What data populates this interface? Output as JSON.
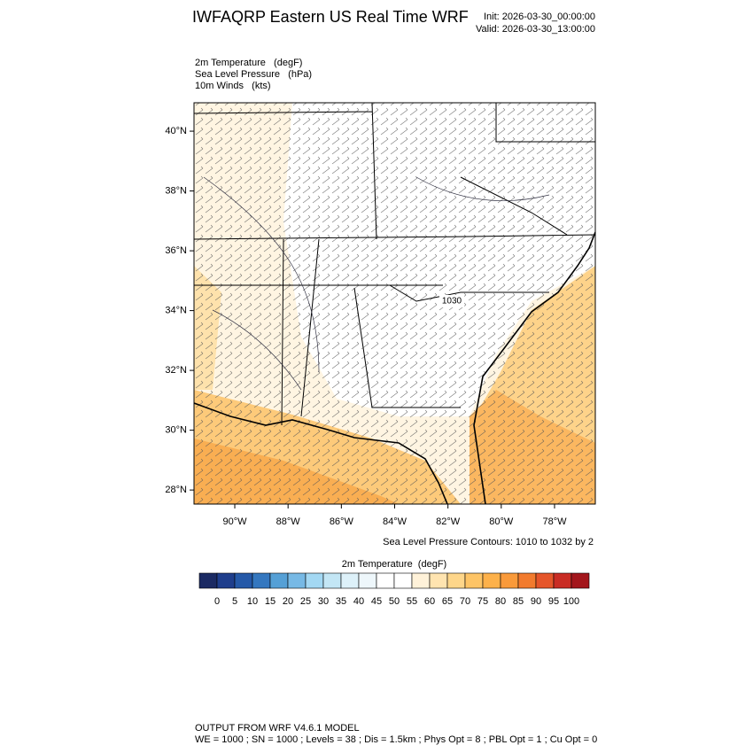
{
  "header": {
    "title": "IWFAQRP Eastern US Real Time WRF",
    "init": "Init: 2026-03-30_00:00:00",
    "valid": "Valid: 2026-03-30_13:00:00"
  },
  "fields": [
    "2m Temperature   (degF)",
    "Sea Level Pressure   (hPa)",
    "10m Winds   (kts)"
  ],
  "map": {
    "lonlim": [
      -91.53,
      -76.47
    ],
    "latlim": [
      27.53,
      40.95
    ],
    "lonticks": [
      {
        "value": -90,
        "label": "90°W"
      },
      {
        "value": -88,
        "label": "88°W"
      },
      {
        "value": -86,
        "label": "86°W"
      },
      {
        "value": -84,
        "label": "84°W"
      },
      {
        "value": -82,
        "label": "82°W"
      },
      {
        "value": -80,
        "label": "80°W"
      },
      {
        "value": -78,
        "label": "78°W"
      }
    ],
    "latticks": [
      {
        "value": 28,
        "label": "28°N"
      },
      {
        "value": 30,
        "label": "30°N"
      },
      {
        "value": 32,
        "label": "32°N"
      },
      {
        "value": 34,
        "label": "34°N"
      },
      {
        "value": 36,
        "label": "36°N"
      },
      {
        "value": 38,
        "label": "38°N"
      },
      {
        "value": 40,
        "label": "40°N"
      }
    ],
    "contour_label": "1030",
    "contour_note": "Sea Level Pressure Contours: 1010 to 1032 by 2"
  },
  "colorbar": {
    "title": "2m Temperature  (degF)",
    "ticks": [
      0,
      5,
      10,
      15,
      20,
      25,
      30,
      35,
      40,
      45,
      50,
      55,
      60,
      65,
      70,
      75,
      80,
      85,
      90,
      95,
      100
    ],
    "colors": [
      "#1b2a63",
      "#1f3e8c",
      "#2559a8",
      "#3477bf",
      "#55a0d6",
      "#77b9e5",
      "#a3d8f3",
      "#c3e6f5",
      "#ddf1f9",
      "#eef7fb",
      "#ffffff",
      "#ffffff",
      "#fff2d9",
      "#ffe4b0",
      "#fed68a",
      "#fdc466",
      "#fdb14a",
      "#f99a3a",
      "#f27b2e",
      "#e5552a",
      "#c92c24",
      "#a3161c"
    ]
  },
  "footer": [
    "OUTPUT FROM WRF V4.6.1 MODEL",
    "WE = 1000 ; SN = 1000 ; Levels = 38 ; Dis = 1.5km ; Phys Opt = 8 ; PBL Opt = 1 ; Cu Opt = 0"
  ]
}
